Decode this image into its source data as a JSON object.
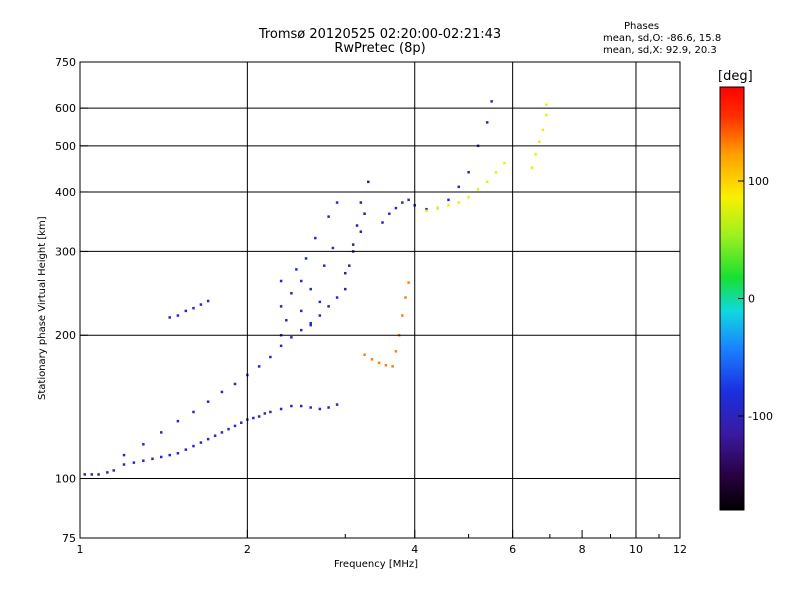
{
  "chart_data": {
    "type": "scatter",
    "title": "Tromsø 20120525 02:20:00-02:21:43",
    "subtitle": "RwPretec (8p)",
    "xlabel": "Frequency [MHz]",
    "ylabel": "Stationary phase Virtual Height [km]",
    "x_scale": "log",
    "y_scale": "log",
    "xlim": [
      1,
      12
    ],
    "ylim": [
      75,
      750
    ],
    "x_ticks": [
      1,
      2,
      4,
      6,
      8,
      10,
      12
    ],
    "x_tick_labels": [
      "1",
      "2",
      "4",
      "6",
      "8",
      "10",
      "12"
    ],
    "y_ticks": [
      75,
      100,
      200,
      300,
      400,
      500,
      600,
      750
    ],
    "y_tick_labels": [
      "75",
      "100",
      "200",
      "300",
      "400",
      "500",
      "600",
      "750"
    ],
    "grid": true,
    "phases_box": {
      "header": "Phases",
      "line1": "mean, sd,O: -86.6, 15.8",
      "line2": "mean, sd,X:  92.9, 20.3"
    },
    "colorbar": {
      "label": "[deg]",
      "range": [
        -180,
        180
      ],
      "ticks": [
        100,
        0,
        -100
      ],
      "tick_labels": [
        "100",
        "0",
        "-100"
      ]
    },
    "series": [
      {
        "points": [
          [
            1.02,
            102,
            -95
          ],
          [
            1.05,
            102,
            -95
          ],
          [
            1.08,
            102,
            -95
          ],
          [
            1.12,
            103,
            -95
          ],
          [
            1.15,
            104,
            -95
          ],
          [
            1.2,
            107,
            -95
          ],
          [
            1.25,
            108,
            -95
          ],
          [
            1.3,
            109,
            -95
          ],
          [
            1.35,
            110,
            -95
          ],
          [
            1.4,
            111,
            -95
          ],
          [
            1.45,
            112,
            -95
          ],
          [
            1.5,
            113,
            -95
          ],
          [
            1.55,
            115,
            -95
          ],
          [
            1.6,
            117,
            -95
          ],
          [
            1.65,
            119,
            -95
          ],
          [
            1.7,
            121,
            -95
          ],
          [
            1.75,
            123,
            -95
          ],
          [
            1.8,
            125,
            -95
          ],
          [
            1.85,
            127,
            -95
          ],
          [
            1.9,
            129,
            -95
          ],
          [
            1.95,
            131,
            -95
          ],
          [
            2.0,
            133,
            -95
          ],
          [
            2.05,
            134,
            -95
          ],
          [
            2.1,
            135,
            -95
          ],
          [
            2.15,
            137,
            -95
          ],
          [
            2.2,
            138,
            -95
          ],
          [
            2.3,
            140,
            -95
          ],
          [
            2.4,
            142,
            -95
          ],
          [
            2.5,
            142,
            -95
          ],
          [
            2.6,
            141,
            -95
          ],
          [
            2.7,
            140,
            -95
          ],
          [
            2.8,
            141,
            -95
          ],
          [
            2.9,
            143,
            -95
          ],
          [
            1.2,
            112,
            -90
          ],
          [
            1.3,
            118,
            -90
          ],
          [
            1.4,
            125,
            -90
          ],
          [
            1.5,
            132,
            -90
          ],
          [
            1.6,
            138,
            -90
          ],
          [
            1.7,
            145,
            -90
          ],
          [
            1.8,
            152,
            -90
          ],
          [
            1.9,
            158,
            -90
          ],
          [
            2.0,
            165,
            -90
          ],
          [
            2.1,
            172,
            -90
          ],
          [
            2.2,
            180,
            -90
          ],
          [
            2.3,
            190,
            -90
          ],
          [
            2.4,
            198,
            -90
          ],
          [
            2.5,
            205,
            -90
          ],
          [
            2.6,
            212,
            -90
          ],
          [
            2.7,
            220,
            -90
          ],
          [
            2.8,
            230,
            -90
          ],
          [
            2.9,
            240,
            -90
          ],
          [
            1.45,
            218,
            -92
          ],
          [
            1.5,
            220,
            -92
          ],
          [
            1.55,
            225,
            -92
          ],
          [
            1.6,
            228,
            -92
          ],
          [
            1.65,
            232,
            -92
          ],
          [
            1.7,
            236,
            -92
          ],
          [
            2.3,
            200,
            -88
          ],
          [
            2.3,
            230,
            -88
          ],
          [
            2.3,
            260,
            -88
          ],
          [
            2.35,
            215,
            -88
          ],
          [
            2.4,
            245,
            -88
          ],
          [
            2.45,
            275,
            -88
          ],
          [
            2.5,
            225,
            -88
          ],
          [
            2.5,
            260,
            -88
          ],
          [
            2.55,
            290,
            -88
          ],
          [
            2.6,
            210,
            -88
          ],
          [
            2.6,
            250,
            -88
          ],
          [
            2.65,
            320,
            -88
          ],
          [
            2.7,
            235,
            -88
          ],
          [
            2.75,
            280,
            -88
          ],
          [
            2.8,
            355,
            -88
          ],
          [
            2.85,
            305,
            -88
          ],
          [
            2.9,
            380,
            -88
          ],
          [
            3.0,
            250,
            -115
          ],
          [
            3.05,
            280,
            -115
          ],
          [
            3.1,
            310,
            -115
          ],
          [
            3.15,
            340,
            -115
          ],
          [
            3.2,
            380,
            -115
          ],
          [
            3.0,
            270,
            -118
          ],
          [
            3.1,
            300,
            -118
          ],
          [
            3.2,
            330,
            -118
          ],
          [
            3.25,
            360,
            -118
          ],
          [
            3.3,
            420,
            -118
          ],
          [
            3.5,
            345,
            -90
          ],
          [
            3.6,
            360,
            -90
          ],
          [
            3.7,
            370,
            -90
          ],
          [
            3.8,
            380,
            -90
          ],
          [
            3.9,
            385,
            -90
          ],
          [
            4.0,
            375,
            -90
          ],
          [
            4.2,
            368,
            -90
          ],
          [
            4.4,
            370,
            -90
          ],
          [
            4.6,
            385,
            -90
          ],
          [
            4.8,
            410,
            -90
          ],
          [
            5.0,
            440,
            -90
          ],
          [
            5.2,
            500,
            -90
          ],
          [
            5.4,
            560,
            -90
          ],
          [
            5.5,
            620,
            -90
          ],
          [
            3.25,
            182,
            130
          ],
          [
            3.35,
            178,
            130
          ],
          [
            3.45,
            175,
            130
          ],
          [
            3.55,
            173,
            130
          ],
          [
            3.65,
            172,
            130
          ],
          [
            3.7,
            185,
            130
          ],
          [
            3.75,
            200,
            130
          ],
          [
            3.8,
            220,
            130
          ],
          [
            3.85,
            240,
            130
          ],
          [
            3.9,
            258,
            130
          ],
          [
            4.2,
            365,
            80
          ],
          [
            4.4,
            370,
            80
          ],
          [
            4.6,
            375,
            80
          ],
          [
            4.8,
            380,
            80
          ],
          [
            5.0,
            390,
            80
          ],
          [
            5.2,
            405,
            80
          ],
          [
            5.4,
            420,
            80
          ],
          [
            5.6,
            440,
            80
          ],
          [
            5.8,
            460,
            80
          ],
          [
            6.5,
            450,
            80
          ],
          [
            6.6,
            480,
            80
          ],
          [
            6.7,
            510,
            80
          ],
          [
            6.8,
            540,
            80
          ],
          [
            6.9,
            580,
            80
          ],
          [
            6.9,
            610,
            80
          ]
        ]
      }
    ]
  }
}
